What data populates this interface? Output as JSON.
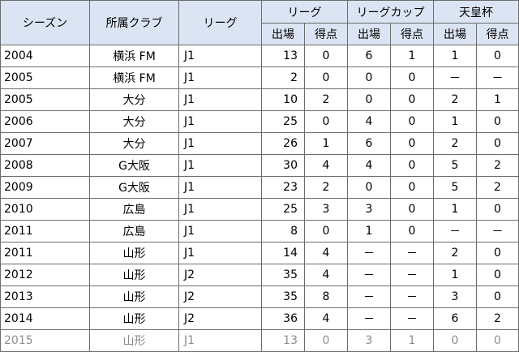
{
  "header": {
    "season": "シーズン",
    "club": "所属クラブ",
    "league": "リーグ",
    "groups": [
      "リーグ",
      "リーグカップ",
      "天皇杯"
    ],
    "subs": [
      "出場",
      "得点",
      "出場",
      "得点",
      "出場",
      "得点"
    ]
  },
  "rows": [
    [
      "2004",
      "横浜 FM",
      "J1",
      "13",
      "0",
      "6",
      "1",
      "1",
      "0"
    ],
    [
      "2005",
      "横浜 FM",
      "J1",
      "2",
      "0",
      "0",
      "0",
      "－",
      "－"
    ],
    [
      "2005",
      "大分",
      "J1",
      "10",
      "2",
      "0",
      "0",
      "2",
      "1"
    ],
    [
      "2006",
      "大分",
      "J1",
      "25",
      "0",
      "4",
      "0",
      "1",
      "0"
    ],
    [
      "2007",
      "大分",
      "J1",
      "26",
      "1",
      "6",
      "0",
      "2",
      "0"
    ],
    [
      "2008",
      "G大阪",
      "J1",
      "30",
      "4",
      "4",
      "0",
      "5",
      "2"
    ],
    [
      "2009",
      "G大阪",
      "J1",
      "23",
      "2",
      "0",
      "0",
      "5",
      "2"
    ],
    [
      "2010",
      "広島",
      "J1",
      "25",
      "3",
      "3",
      "0",
      "1",
      "0"
    ],
    [
      "2011",
      "広島",
      "J1",
      "8",
      "0",
      "1",
      "0",
      "－",
      "－"
    ],
    [
      "2011",
      "山形",
      "J1",
      "14",
      "4",
      "－",
      "－",
      "2",
      "0"
    ],
    [
      "2012",
      "山形",
      "J2",
      "35",
      "4",
      "－",
      "－",
      "1",
      "0"
    ],
    [
      "2013",
      "山形",
      "J2",
      "35",
      "8",
      "－",
      "－",
      "3",
      "0"
    ],
    [
      "2014",
      "山形",
      "J2",
      "36",
      "4",
      "－",
      "－",
      "6",
      "2"
    ],
    [
      "2015",
      "山形",
      "J1",
      "13",
      "0",
      "3",
      "1",
      "0",
      "0"
    ]
  ]
}
